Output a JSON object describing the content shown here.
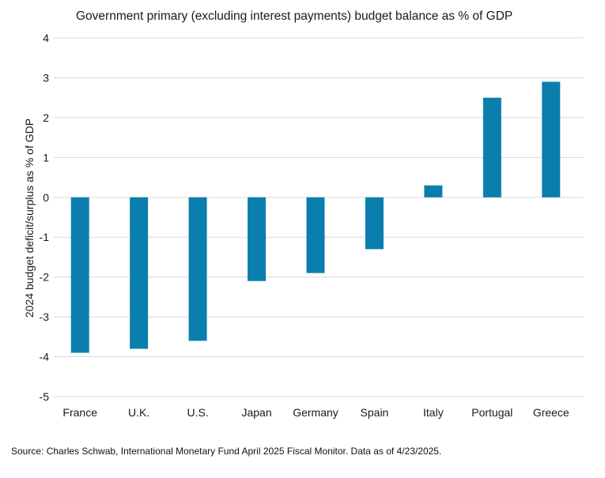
{
  "chart_data": {
    "type": "bar",
    "title": "Government primary (excluding interest payments) budget balance as % of GDP",
    "ylabel": "2024 budget deficit/surplus as % of GDP",
    "xlabel": "",
    "categories": [
      "France",
      "U.K.",
      "U.S.",
      "Japan",
      "Germany",
      "Spain",
      "Italy",
      "Portugal",
      "Greece"
    ],
    "values": [
      -3.9,
      -3.8,
      -3.6,
      -2.1,
      -1.9,
      -1.3,
      0.3,
      2.5,
      2.9
    ],
    "ylim": [
      -5,
      4
    ],
    "yticks": [
      "4",
      "3",
      "2",
      "1",
      "0",
      "-1",
      "-2",
      "-3",
      "-4",
      "-5"
    ],
    "grid": true,
    "bar_color": "#0a7fad",
    "grid_color": "#d9d9d9",
    "source": "Source: Charles Schwab, International Monetary Fund April 2025 Fiscal Monitor. Data as of 4/23/2025."
  }
}
